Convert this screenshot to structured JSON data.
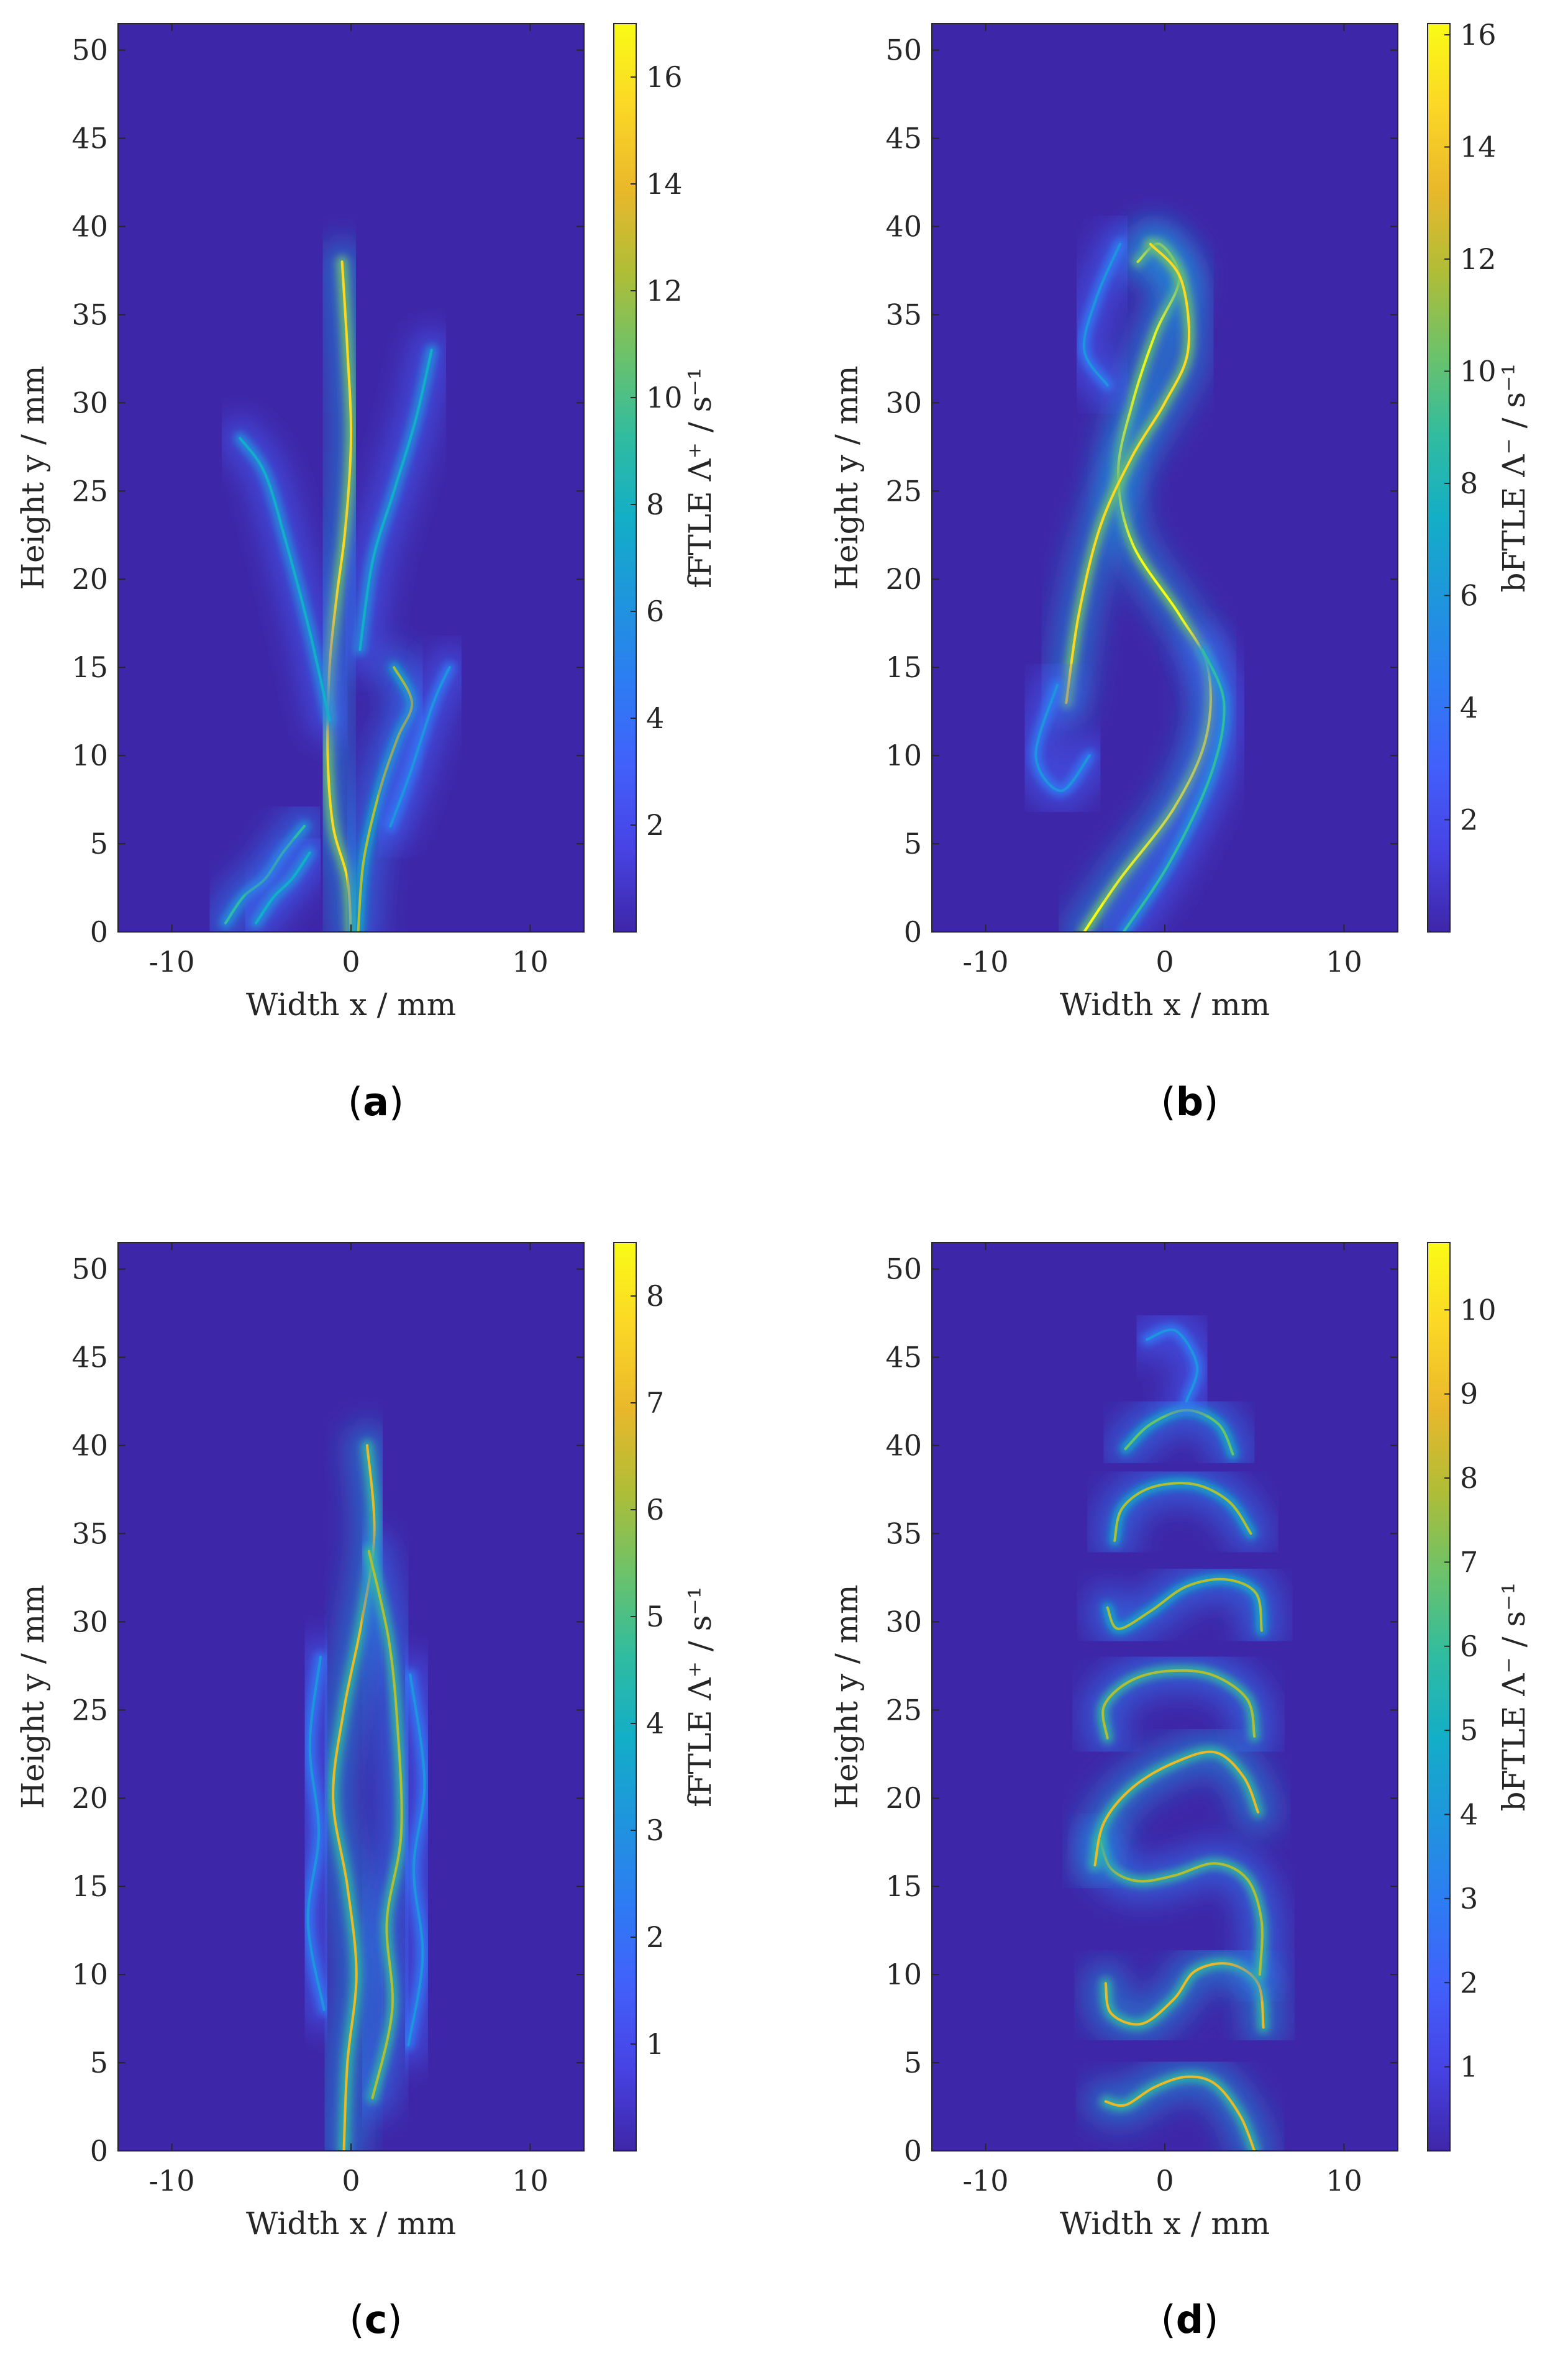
{
  "colors": {
    "background": "#3e26a8",
    "colormap": [
      "#3e26a8",
      "#4743e4",
      "#4260fb",
      "#2d7cf3",
      "#1f95dd",
      "#13aec7",
      "#30bca0",
      "#6cc26a",
      "#b0bd36",
      "#eab82b",
      "#fbd726",
      "#f9fb15"
    ],
    "axis": "#262626"
  },
  "chart_data": [
    {
      "id": "a",
      "type": "heatmap",
      "panel_label": "a",
      "xlabel": "Width x / mm",
      "ylabel": "Height y / mm",
      "xlim": [
        -13,
        13
      ],
      "ylim": [
        0,
        51.5
      ],
      "xticks": [
        -10,
        0,
        10
      ],
      "xtick_labels": [
        "-10",
        "0",
        "10"
      ],
      "yticks": [
        0,
        5,
        10,
        15,
        20,
        25,
        30,
        35,
        40,
        45,
        50
      ],
      "ytick_labels": [
        "0",
        "5",
        "10",
        "15",
        "20",
        "25",
        "30",
        "35",
        "40",
        "45",
        "50"
      ],
      "colorbar": {
        "label": "fFTLE Λ⁺ / s⁻¹",
        "range": [
          0,
          17
        ],
        "ticks": [
          2,
          4,
          6,
          8,
          10,
          12,
          14,
          16
        ],
        "tick_labels": [
          "2",
          "4",
          "6",
          "8",
          "10",
          "12",
          "14",
          "16"
        ]
      },
      "ridges": [
        {
          "points": [
            [
              0,
              0
            ],
            [
              -0.2,
              3
            ],
            [
              -1.0,
              6
            ],
            [
              -1.3,
              10
            ],
            [
              -1.2,
              15
            ],
            [
              -0.8,
              19
            ],
            [
              -0.3,
              23
            ],
            [
              0,
              28
            ],
            [
              -0.2,
              33
            ],
            [
              -0.5,
              38
            ]
          ],
          "strength": 0.9
        },
        {
          "points": [
            [
              0.4,
              0
            ],
            [
              0.7,
              4
            ],
            [
              1.6,
              8
            ],
            [
              2.6,
              11
            ],
            [
              3.4,
              13
            ],
            [
              2.4,
              15
            ]
          ],
          "strength": 0.7
        },
        {
          "points": [
            [
              -1.2,
              12
            ],
            [
              -2.3,
              17
            ],
            [
              -3.6,
              22
            ],
            [
              -4.8,
              26
            ],
            [
              -6.2,
              28
            ]
          ],
          "strength": 0.45
        },
        {
          "points": [
            [
              0.5,
              16
            ],
            [
              1.2,
              21
            ],
            [
              2.4,
              25
            ],
            [
              3.6,
              29
            ],
            [
              4.5,
              33
            ]
          ],
          "strength": 0.4
        },
        {
          "points": [
            [
              -7,
              0.5
            ],
            [
              -6,
              2
            ],
            [
              -4.8,
              3
            ],
            [
              -3.8,
              4.5
            ],
            [
              -2.6,
              6
            ]
          ],
          "strength": 0.55
        },
        {
          "points": [
            [
              -5.3,
              0.5
            ],
            [
              -4.3,
              2
            ],
            [
              -3.3,
              3
            ],
            [
              -2.3,
              4.5
            ]
          ],
          "strength": 0.45
        },
        {
          "points": [
            [
              2.2,
              6
            ],
            [
              3.3,
              9
            ],
            [
              4.6,
              13
            ],
            [
              5.5,
              15
            ]
          ],
          "strength": 0.35
        }
      ]
    },
    {
      "id": "b",
      "type": "heatmap",
      "panel_label": "b",
      "xlabel": "Width x / mm",
      "ylabel": "Height y / mm",
      "xlim": [
        -13,
        13
      ],
      "ylim": [
        0,
        51.5
      ],
      "xticks": [
        -10,
        0,
        10
      ],
      "xtick_labels": [
        "-10",
        "0",
        "10"
      ],
      "yticks": [
        0,
        5,
        10,
        15,
        20,
        25,
        30,
        35,
        40,
        45,
        50
      ],
      "ytick_labels": [
        "0",
        "5",
        "10",
        "15",
        "20",
        "25",
        "30",
        "35",
        "40",
        "45",
        "50"
      ],
      "colorbar": {
        "label": "bFTLE Λ⁻ / s⁻¹",
        "range": [
          0,
          16.2
        ],
        "ticks": [
          2,
          4,
          6,
          8,
          10,
          12,
          14,
          16
        ],
        "tick_labels": [
          "2",
          "4",
          "6",
          "8",
          "10",
          "12",
          "14",
          "16"
        ]
      },
      "ridges": [
        {
          "points": [
            [
              -4.5,
              0
            ],
            [
              -2.5,
              3
            ],
            [
              0.5,
              7
            ],
            [
              2.3,
              11
            ],
            [
              2.4,
              15
            ],
            [
              0.8,
              18
            ],
            [
              -1.8,
              22
            ],
            [
              -2.6,
              26
            ],
            [
              -1.8,
              30
            ],
            [
              -0.5,
              34
            ],
            [
              0.8,
              37
            ],
            [
              -0.3,
              39
            ],
            [
              -1.5,
              38
            ]
          ],
          "strength": 1.0
        },
        {
          "points": [
            [
              -5.5,
              13
            ],
            [
              -4.8,
              18
            ],
            [
              -3.6,
              23
            ],
            [
              -1.8,
              27
            ],
            [
              0,
              30
            ],
            [
              1.3,
              33
            ],
            [
              0.9,
              37
            ],
            [
              -0.8,
              39
            ]
          ],
          "strength": 0.9
        },
        {
          "points": [
            [
              -2.3,
              0
            ],
            [
              0.3,
              4
            ],
            [
              2.6,
              9
            ],
            [
              3.3,
              13
            ],
            [
              2.1,
              16
            ]
          ],
          "strength": 0.5
        },
        {
          "points": [
            [
              -6,
              14
            ],
            [
              -7.2,
              10
            ],
            [
              -5.8,
              8
            ],
            [
              -4.2,
              10
            ]
          ],
          "strength": 0.3
        },
        {
          "points": [
            [
              -2.5,
              39
            ],
            [
              -3.8,
              36
            ],
            [
              -4.5,
              33
            ],
            [
              -3.2,
              31
            ]
          ],
          "strength": 0.35
        }
      ]
    },
    {
      "id": "c",
      "type": "heatmap",
      "panel_label": "c",
      "xlabel": "Width x / mm",
      "ylabel": "Height y / mm",
      "xlim": [
        -13,
        13
      ],
      "ylim": [
        0,
        51.5
      ],
      "xticks": [
        -10,
        0,
        10
      ],
      "xtick_labels": [
        "-10",
        "0",
        "10"
      ],
      "yticks": [
        0,
        5,
        10,
        15,
        20,
        25,
        30,
        35,
        40,
        45,
        50
      ],
      "ytick_labels": [
        "0",
        "5",
        "10",
        "15",
        "20",
        "25",
        "30",
        "35",
        "40",
        "45",
        "50"
      ],
      "colorbar": {
        "label": "fFTLE Λ⁺ / s⁻¹",
        "range": [
          0,
          8.5
        ],
        "ticks": [
          1,
          2,
          3,
          4,
          5,
          6,
          7,
          8
        ],
        "tick_labels": [
          "1",
          "2",
          "3",
          "4",
          "5",
          "6",
          "7",
          "8"
        ]
      },
      "ridges": [
        {
          "points": [
            [
              -0.4,
              0
            ],
            [
              -0.2,
              5
            ],
            [
              0.3,
              10
            ],
            [
              -0.2,
              15
            ],
            [
              -1.0,
              20
            ],
            [
              -0.4,
              25
            ],
            [
              0.6,
              30
            ],
            [
              1.3,
              35
            ],
            [
              0.9,
              40
            ]
          ],
          "strength": 0.85
        },
        {
          "points": [
            [
              1.2,
              3
            ],
            [
              2.3,
              8
            ],
            [
              2.0,
              13
            ],
            [
              2.8,
              18
            ],
            [
              2.6,
              24
            ],
            [
              2.1,
              29
            ],
            [
              1.0,
              34
            ]
          ],
          "strength": 0.75
        },
        {
          "points": [
            [
              -1.5,
              8
            ],
            [
              -2.4,
              13
            ],
            [
              -1.8,
              18
            ],
            [
              -2.3,
              23
            ],
            [
              -1.7,
              28
            ]
          ],
          "strength": 0.35
        },
        {
          "points": [
            [
              3.2,
              6
            ],
            [
              4.0,
              11
            ],
            [
              3.5,
              16
            ],
            [
              4.1,
              21
            ],
            [
              3.3,
              27
            ]
          ],
          "strength": 0.3
        }
      ]
    },
    {
      "id": "d",
      "type": "heatmap",
      "panel_label": "d",
      "xlabel": "Width x / mm",
      "ylabel": "Height y / mm",
      "xlim": [
        -13,
        13
      ],
      "ylim": [
        0,
        51.5
      ],
      "xticks": [
        -10,
        0,
        10
      ],
      "xtick_labels": [
        "-10",
        "0",
        "10"
      ],
      "yticks": [
        0,
        5,
        10,
        15,
        20,
        25,
        30,
        35,
        40,
        45,
        50
      ],
      "ytick_labels": [
        "0",
        "5",
        "10",
        "15",
        "20",
        "25",
        "30",
        "35",
        "40",
        "45",
        "50"
      ],
      "colorbar": {
        "label": "bFTLE Λ⁻ / s⁻¹",
        "range": [
          0,
          10.8
        ],
        "ticks": [
          1,
          2,
          3,
          4,
          5,
          6,
          7,
          8,
          9,
          10
        ],
        "tick_labels": [
          "1",
          "2",
          "3",
          "4",
          "5",
          "6",
          "7",
          "8",
          "9",
          "10"
        ]
      },
      "ridges": [
        {
          "points": [
            [
              5,
              0
            ],
            [
              4.2,
              2
            ],
            [
              2.8,
              3.8
            ],
            [
              1.2,
              4.2
            ],
            [
              -0.6,
              3.6
            ],
            [
              -2.2,
              2.6
            ],
            [
              -3.3,
              2.8
            ]
          ],
          "strength": 0.85
        },
        {
          "points": [
            [
              5.5,
              7
            ],
            [
              5.2,
              9.5
            ],
            [
              3.6,
              10.6
            ],
            [
              1.7,
              10.2
            ],
            [
              0.5,
              8.6
            ],
            [
              -1.3,
              7.2
            ],
            [
              -3.0,
              7.8
            ],
            [
              -3.3,
              9.5
            ]
          ],
          "strength": 0.8
        },
        {
          "points": [
            [
              5.3,
              10
            ],
            [
              5.4,
              13
            ],
            [
              4.6,
              15.4
            ],
            [
              2.8,
              16.3
            ],
            [
              0.5,
              15.6
            ],
            [
              -1.5,
              15.3
            ],
            [
              -3.0,
              16.0
            ],
            [
              -3.6,
              17.6
            ]
          ],
          "strength": 0.75
        },
        {
          "points": [
            [
              5.2,
              19.2
            ],
            [
              4.4,
              21.2
            ],
            [
              2.8,
              22.6
            ],
            [
              0.5,
              22.0
            ],
            [
              -1.8,
              20.6
            ],
            [
              -3.4,
              18.6
            ],
            [
              -3.9,
              16.2
            ]
          ],
          "strength": 0.8
        },
        {
          "points": [
            [
              5.0,
              23.5
            ],
            [
              4.6,
              25.6
            ],
            [
              2.6,
              27.0
            ],
            [
              0.1,
              27.2
            ],
            [
              -2.0,
              26.6
            ],
            [
              -3.4,
              25.2
            ],
            [
              -3.2,
              23.4
            ]
          ],
          "strength": 0.75
        },
        {
          "points": [
            [
              5.4,
              29.5
            ],
            [
              5.1,
              31.6
            ],
            [
              3.4,
              32.4
            ],
            [
              1.2,
              32.0
            ],
            [
              -0.8,
              30.6
            ],
            [
              -2.6,
              29.6
            ],
            [
              -3.2,
              30.8
            ]
          ],
          "strength": 0.7
        },
        {
          "points": [
            [
              4.8,
              35
            ],
            [
              3.6,
              36.8
            ],
            [
              1.6,
              37.8
            ],
            [
              -0.8,
              37.6
            ],
            [
              -2.4,
              36.4
            ],
            [
              -2.8,
              34.6
            ]
          ],
          "strength": 0.7
        },
        {
          "points": [
            [
              3.8,
              39.5
            ],
            [
              3.0,
              41.2
            ],
            [
              1.2,
              42.0
            ],
            [
              -0.8,
              41.2
            ],
            [
              -2.2,
              39.8
            ]
          ],
          "strength": 0.6
        },
        {
          "points": [
            [
              1.2,
              42.5
            ],
            [
              1.8,
              44.5
            ],
            [
              0.6,
              46.5
            ],
            [
              -1.0,
              46.0
            ]
          ],
          "strength": 0.35
        }
      ]
    }
  ]
}
